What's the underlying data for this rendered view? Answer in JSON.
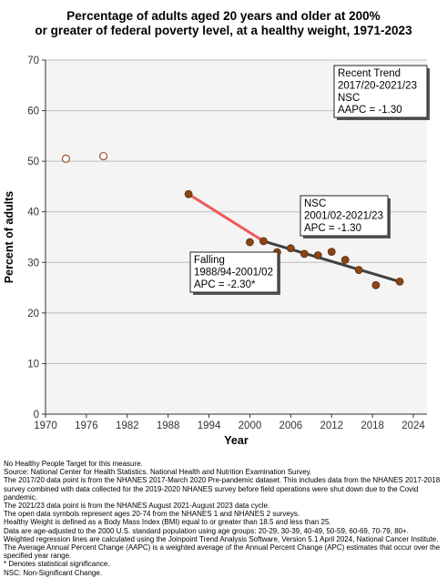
{
  "chart_data": {
    "type": "scatter",
    "title_lines": [
      "Percentage of adults aged 20 years and older at 200%",
      "or greater of federal poverty level, at a healthy weight, 1971-2023"
    ],
    "xlabel": "Year",
    "ylabel": "Percent of adults",
    "xlim": [
      1970,
      2026
    ],
    "ylim": [
      0,
      70
    ],
    "xticks": [
      1970,
      1976,
      1982,
      1988,
      1994,
      2000,
      2006,
      2012,
      2018,
      2024
    ],
    "yticks": [
      0,
      10,
      20,
      30,
      40,
      50,
      60,
      70
    ],
    "grid": "horizontal",
    "series": [
      {
        "marker": "open-circle",
        "color": "#a0522d",
        "x": [
          1973,
          1978.5
        ],
        "y": [
          50.5,
          51.0
        ]
      },
      {
        "marker": "filled-circle",
        "color": "#8b4513",
        "x": [
          1991,
          2000,
          2002,
          2004,
          2006,
          2008,
          2010,
          2012,
          2014,
          2016,
          2018.5,
          2022
        ],
        "y": [
          43.5,
          34.0,
          34.2,
          32.0,
          32.8,
          31.7,
          31.4,
          32.1,
          30.5,
          28.5,
          25.5,
          26.2
        ]
      }
    ],
    "trend_lines": [
      {
        "color": "#f05a5a",
        "x": [
          1991,
          2002
        ],
        "y": [
          43.5,
          34.2
        ]
      },
      {
        "color": "#404040",
        "x": [
          2002,
          2022
        ],
        "y": [
          34.2,
          26.2
        ]
      }
    ],
    "annotations": [
      {
        "lines": [
          "Recent Trend",
          "2017/20-2021/23",
          "NSC",
          "AAPC = -1.30"
        ],
        "anchor": "top-right"
      },
      {
        "lines": [
          "NSC",
          "2001/02-2021/23",
          "APC = -1.30"
        ],
        "anchor": "upper-middle-right"
      },
      {
        "lines": [
          "Falling",
          "1988/94-2001/02",
          "APC = -2.30*"
        ],
        "anchor": "middle"
      }
    ]
  },
  "footnotes": [
    "No Healthy People Target for this measure.",
    "Source: National Center for Health Statistics. National Health and Nutrition Examination Survey.",
    "The 2017/20 data point is from the NHANES 2017-March 2020 Pre-pandemic dataset. This includes data from the NHANES 2017-2018 survey combined with data collected for the 2019-2020 NHANES survey before field operations were shut down due to the Covid pandemic.",
    "The 2021/23 data point is from the NHANES August 2021-August 2023 data cycle.",
    "The open data symbols represent ages 20-74 from the NHANES 1 and NHANES 2 surveys.",
    "Healthy Weight is defined as a Body Mass Index (BMI) equal to or greater than 18.5 and less than 25.",
    "Data are age-adjusted to the 2000 U.S. standard population using age groups: 20-29, 30-39, 40-49, 50-59, 60-69, 70-79, 80+.",
    "Weighted regression lines are calculated using the Joinpoint Trend Analysis Software, Version 5.1 April 2024, National Cancer Institute.",
    "The Average Annual Percent Change (AAPC) is a weighted average of the Annual Percent Change (APC) estimates that occur over the specified year range.",
    "* Denotes statistical significance.",
    "NSC: Non-Significant Change."
  ]
}
